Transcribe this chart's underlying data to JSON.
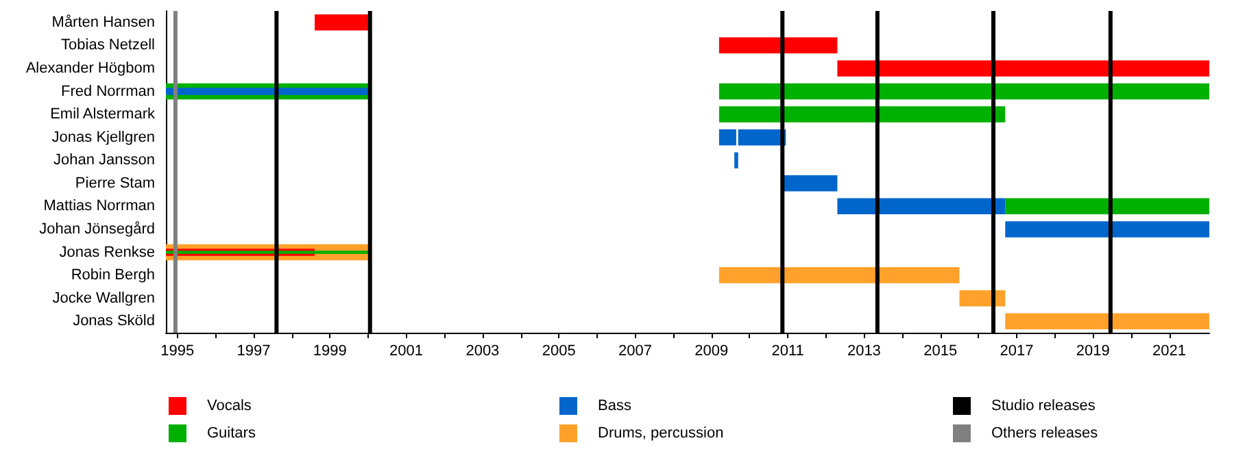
{
  "chart_data": {
    "type": "bar",
    "orientation": "horizontal",
    "legend": "bottom",
    "grid": false,
    "categories": [
      "Mårten Hansen",
      "Tobias Netzell",
      "Alexander Högbom",
      "Fred Norrman",
      "Emil Alstermark",
      "Jonas Kjellgren",
      "Johan Jansson",
      "Pierre Stam",
      "Mattias Norrman",
      "Johan Jönsegård",
      "Jonas Renkse",
      "Robin Bergh",
      "Jocke Wallgren",
      "Jonas Sköld"
    ],
    "series": [
      {
        "name": "Vocals",
        "color": "#ff0000",
        "values": [
          1.4,
          3.1,
          9.75,
          null,
          null,
          null,
          null,
          null,
          null,
          null,
          null,
          null,
          null,
          null
        ],
        "base": [
          1998.6,
          2009.2,
          2012.3,
          null,
          null,
          null,
          null,
          null,
          null,
          null,
          null,
          null,
          null,
          null
        ]
      },
      {
        "name": "Guitars",
        "color": "#00b000",
        "values": [
          null,
          null,
          null,
          12.85,
          7.5,
          null,
          null,
          null,
          5.35,
          null,
          null,
          null,
          null,
          null
        ],
        "base": [
          null,
          null,
          null,
          2009.2,
          2009.2,
          null,
          null,
          null,
          2016.7,
          null,
          null,
          null,
          null,
          null
        ]
      },
      {
        "name": "Bass",
        "color": "#0066cc",
        "values": [
          null,
          null,
          null,
          null,
          null,
          0.45,
          0.1,
          1.4,
          4.4,
          5.35,
          null,
          null,
          null,
          null
        ],
        "base": [
          null,
          null,
          null,
          null,
          null,
          2009.2,
          2009.6,
          2010.9,
          2012.3,
          2016.7,
          null,
          null,
          null,
          null
        ]
      },
      {
        "name": "Drums, percussion",
        "color": "#ffa12a",
        "values": [
          null,
          null,
          null,
          null,
          null,
          null,
          null,
          null,
          null,
          null,
          5.3,
          6.3,
          1.2,
          5.35
        ],
        "base": [
          null,
          null,
          null,
          null,
          null,
          null,
          null,
          null,
          null,
          null,
          1994.7,
          2009.2,
          2015.5,
          2016.7
        ]
      },
      {
        "color": "#00b000",
        "values": [
          null,
          null,
          null,
          5.3,
          null,
          null,
          null,
          null,
          null,
          null,
          null,
          null,
          null,
          null
        ],
        "base": [
          null,
          null,
          null,
          1994.7,
          null,
          null,
          null,
          null,
          null,
          null,
          null,
          null,
          null,
          null
        ]
      },
      {
        "color": "#0066cc",
        "values": [
          null,
          null,
          null,
          null,
          null,
          1.25,
          null,
          null,
          null,
          null,
          null,
          null,
          null,
          null
        ],
        "base": [
          null,
          null,
          null,
          null,
          null,
          2009.7,
          null,
          null,
          null,
          null,
          null,
          null,
          null,
          null
        ]
      },
      {
        "color": "#0066cc",
        "values": [
          null,
          null,
          null,
          5.3,
          null,
          null,
          null,
          null,
          null,
          null,
          null,
          null,
          null,
          null
        ],
        "base": [
          null,
          null,
          null,
          1994.7,
          null,
          null,
          null,
          null,
          null,
          null,
          null,
          null,
          null,
          null
        ]
      },
      {
        "color": "#ff0000",
        "values": [
          null,
          null,
          null,
          null,
          null,
          null,
          null,
          null,
          null,
          null,
          3.9,
          null,
          null,
          null
        ],
        "base": [
          null,
          null,
          null,
          null,
          null,
          null,
          null,
          null,
          null,
          null,
          1994.7,
          null,
          null,
          null
        ]
      },
      {
        "color": "#00b000",
        "values": [
          null,
          null,
          null,
          null,
          null,
          null,
          null,
          null,
          null,
          null,
          5.3,
          null,
          null,
          null
        ],
        "base": [
          null,
          null,
          null,
          null,
          null,
          null,
          null,
          null,
          null,
          null,
          1994.7,
          null,
          null,
          null
        ]
      }
    ],
    "xlim": [
      1994.7,
      2022.05
    ],
    "xticks": [
      1995,
      {
        "value": 1996,
        "label": null
      },
      1997,
      {
        "value": 1998,
        "label": null
      },
      1999,
      {
        "value": 2000,
        "label": null
      },
      2001,
      {
        "value": 2002,
        "label": null
      },
      2003,
      {
        "value": 2004,
        "label": null
      },
      2005,
      {
        "value": 2006,
        "label": null
      },
      2007,
      {
        "value": 2008,
        "label": null
      },
      2009,
      {
        "value": 2010,
        "label": null
      },
      2011,
      {
        "value": 2012,
        "label": null
      },
      2013,
      {
        "value": 2014,
        "label": null
      },
      2015,
      {
        "value": 2016,
        "label": null
      },
      2017,
      {
        "value": 2018,
        "label": null
      },
      2019,
      {
        "value": 2020,
        "label": null
      },
      2021
    ],
    "ref_lines": [
      {
        "axis": "x",
        "value": 1997.6,
        "label": "Studio releases",
        "color": "#000000"
      },
      {
        "axis": "x",
        "value": 2000.05,
        "color": "#000000"
      },
      {
        "axis": "x",
        "value": 2010.86,
        "color": "#000000"
      },
      {
        "axis": "x",
        "value": 2013.35,
        "color": "#000000"
      },
      {
        "axis": "x",
        "value": 2016.39,
        "color": "#000000"
      },
      {
        "axis": "x",
        "value": 2019.46,
        "color": "#000000"
      },
      {
        "axis": "x",
        "value": 1994.95,
        "label": "Others releases",
        "color": "#808080"
      }
    ]
  }
}
